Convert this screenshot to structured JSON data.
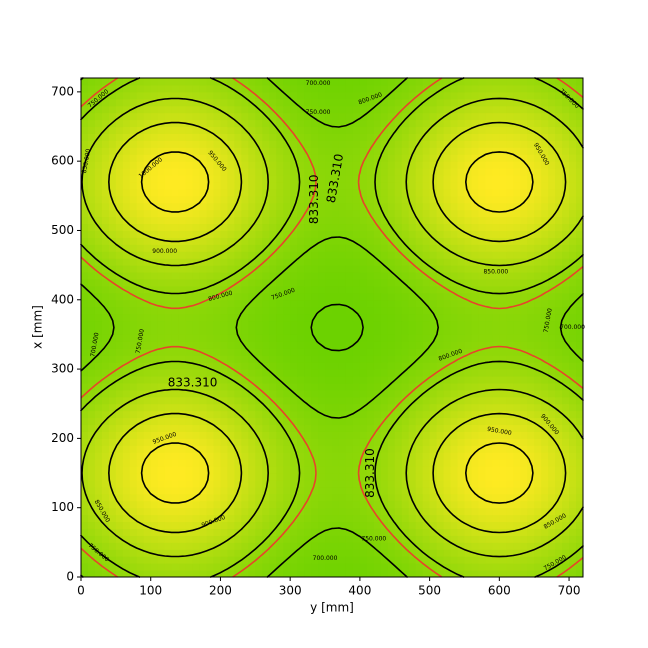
{
  "chart_data": {
    "type": "contour",
    "xlabel": "y [mm]",
    "ylabel": "x [mm]",
    "xlim": [
      0,
      720
    ],
    "ylim": [
      0,
      720
    ],
    "xticks": [
      0,
      100,
      200,
      300,
      400,
      500,
      600,
      700
    ],
    "yticks": [
      0,
      100,
      200,
      300,
      400,
      500,
      600,
      700
    ],
    "levels": [
      {
        "value": 700,
        "label": "700.000"
      },
      {
        "value": 750,
        "label": "750.000"
      },
      {
        "value": 800,
        "label": "800.000"
      },
      {
        "value": 850,
        "label": "850.000"
      },
      {
        "value": 900,
        "label": "900.000"
      },
      {
        "value": 950,
        "label": "950.000"
      },
      {
        "value": 1000,
        "label": "1000.000"
      }
    ],
    "line_color": "#000000",
    "highlight_level": {
      "value": 833.31,
      "label": "833.310",
      "color": "#e8432a"
    },
    "colors": [
      "#6cd200",
      "#ffea22"
    ]
  }
}
